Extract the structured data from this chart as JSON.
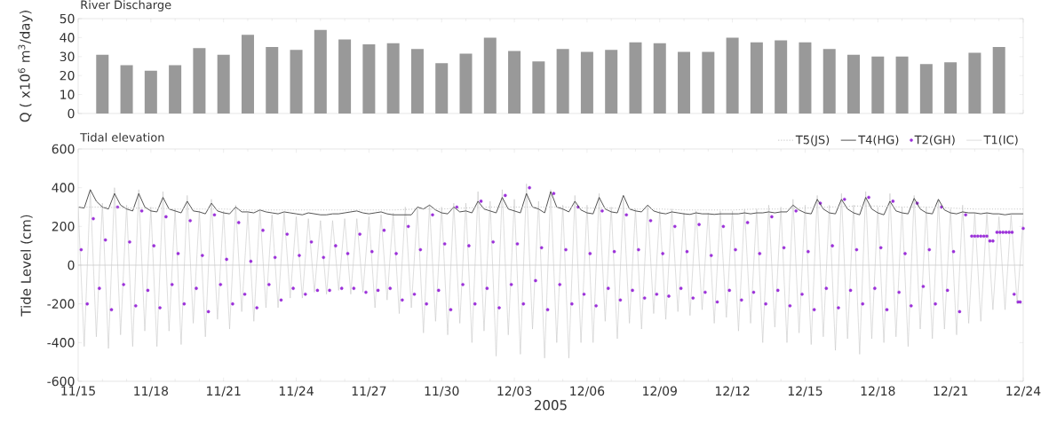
{
  "chart_data": [
    {
      "type": "bar",
      "title": "River Discharge",
      "ylabel": "Q ( x10$^{6}$ m$^{3}$/day)",
      "x": [
        "2005-11-16",
        "2005-11-17",
        "2005-11-18",
        "2005-11-19",
        "2005-11-20",
        "2005-11-21",
        "2005-11-22",
        "2005-11-23",
        "2005-11-24",
        "2005-11-25",
        "2005-11-26",
        "2005-11-27",
        "2005-11-28",
        "2005-11-29",
        "2005-11-30",
        "2005-12-01",
        "2005-12-02",
        "2005-12-03",
        "2005-12-04",
        "2005-12-05",
        "2005-12-06",
        "2005-12-07",
        "2005-12-08",
        "2005-12-09",
        "2005-12-10",
        "2005-12-11",
        "2005-12-12",
        "2005-12-13",
        "2005-12-14",
        "2005-12-15",
        "2005-12-16",
        "2005-12-17",
        "2005-12-18",
        "2005-12-19",
        "2005-12-20",
        "2005-12-21",
        "2005-12-22",
        "2005-12-23"
      ],
      "values": [
        31,
        25.5,
        22.5,
        25.5,
        34.5,
        31,
        41.5,
        35,
        33.5,
        44,
        39,
        36.5,
        37,
        34,
        26.5,
        31.5,
        40,
        33,
        27.5,
        34,
        32.5,
        33.5,
        37.5,
        37,
        32.5,
        32.5,
        40,
        37.5,
        38.5,
        37.5,
        34,
        31,
        30,
        30,
        26,
        27,
        32,
        35
      ],
      "color": "#999999",
      "xlim": [
        "2005-11-15",
        "2005-12-24"
      ],
      "xticks": [
        {
          "value": "2005-11-15",
          "label": null
        },
        {
          "value": "2005-11-18",
          "label": null
        },
        {
          "value": "2005-11-21",
          "label": null
        },
        {
          "value": "2005-11-24",
          "label": null
        },
        {
          "value": "2005-11-27",
          "label": null
        },
        {
          "value": "2005-11-30",
          "label": null
        },
        {
          "value": "2005-12-03",
          "label": null
        },
        {
          "value": "2005-12-06",
          "label": null
        },
        {
          "value": "2005-12-09",
          "label": null
        },
        {
          "value": "2005-12-12",
          "label": null
        },
        {
          "value": "2005-12-15",
          "label": null
        },
        {
          "value": "2005-12-18",
          "label": null
        },
        {
          "value": "2005-12-21",
          "label": null
        },
        {
          "value": "2005-12-24",
          "label": null
        }
      ],
      "ylim": [
        0,
        50
      ],
      "yticks": [
        0,
        10,
        20,
        30,
        40,
        50
      ],
      "tick_labels": "y"
    },
    {
      "type": "line",
      "title": "Tidal elevation",
      "xlabel": "2005",
      "ylabel": "Tide Level (cm)",
      "legend": "top right",
      "x": [
        "2005-11-15T00:00",
        "2005-11-15T06:00",
        "2005-11-15T12:00",
        "2005-11-15T18:00",
        "2005-11-16T00:00",
        "2005-11-16T06:00",
        "2005-11-16T12:00",
        "2005-11-16T18:00",
        "2005-11-17T00:00",
        "2005-11-17T06:00",
        "2005-11-17T12:00",
        "2005-11-17T18:00",
        "2005-11-18T00:00",
        "2005-11-18T06:00",
        "2005-11-18T12:00",
        "2005-11-18T18:00",
        "2005-11-19T00:00",
        "2005-11-19T06:00",
        "2005-11-19T12:00",
        "2005-11-19T18:00",
        "2005-11-20T00:00",
        "2005-11-20T06:00",
        "2005-11-20T12:00",
        "2005-11-20T18:00",
        "2005-11-21T00:00",
        "2005-11-21T06:00",
        "2005-11-21T12:00",
        "2005-11-21T18:00",
        "2005-11-22T00:00",
        "2005-11-22T06:00",
        "2005-11-22T12:00",
        "2005-11-22T18:00",
        "2005-11-23T00:00",
        "2005-11-23T06:00",
        "2005-11-23T12:00",
        "2005-11-23T18:00",
        "2005-11-24T00:00",
        "2005-11-24T06:00",
        "2005-11-24T12:00",
        "2005-11-24T18:00",
        "2005-11-25T00:00",
        "2005-11-25T06:00",
        "2005-11-25T12:00",
        "2005-11-25T18:00",
        "2005-11-26T00:00",
        "2005-11-26T06:00",
        "2005-11-26T12:00",
        "2005-11-26T18:00",
        "2005-11-27T00:00",
        "2005-11-27T06:00",
        "2005-11-27T12:00",
        "2005-11-27T18:00",
        "2005-11-28T00:00",
        "2005-11-28T06:00",
        "2005-11-28T12:00",
        "2005-11-28T18:00",
        "2005-11-29T00:00",
        "2005-11-29T06:00",
        "2005-11-29T12:00",
        "2005-11-29T18:00",
        "2005-11-30T00:00",
        "2005-11-30T06:00",
        "2005-11-30T12:00",
        "2005-11-30T18:00",
        "2005-12-01T00:00",
        "2005-12-01T06:00",
        "2005-12-01T12:00",
        "2005-12-01T18:00",
        "2005-12-02T00:00",
        "2005-12-02T06:00",
        "2005-12-02T12:00",
        "2005-12-02T18:00",
        "2005-12-03T00:00",
        "2005-12-03T06:00",
        "2005-12-03T12:00",
        "2005-12-03T18:00",
        "2005-12-04T00:00",
        "2005-12-04T06:00",
        "2005-12-04T12:00",
        "2005-12-04T18:00",
        "2005-12-05T00:00",
        "2005-12-05T06:00",
        "2005-12-05T12:00",
        "2005-12-05T18:00",
        "2005-12-06T00:00",
        "2005-12-06T06:00",
        "2005-12-06T12:00",
        "2005-12-06T18:00",
        "2005-12-07T00:00",
        "2005-12-07T06:00",
        "2005-12-07T12:00",
        "2005-12-07T18:00",
        "2005-12-08T00:00",
        "2005-12-08T06:00",
        "2005-12-08T12:00",
        "2005-12-08T18:00",
        "2005-12-09T00:00",
        "2005-12-09T06:00",
        "2005-12-09T12:00",
        "2005-12-09T18:00",
        "2005-12-10T00:00",
        "2005-12-10T06:00",
        "2005-12-10T12:00",
        "2005-12-10T18:00",
        "2005-12-11T00:00",
        "2005-12-11T06:00",
        "2005-12-11T12:00",
        "2005-12-11T18:00",
        "2005-12-12T00:00",
        "2005-12-12T06:00",
        "2005-12-12T12:00",
        "2005-12-12T18:00",
        "2005-12-13T00:00",
        "2005-12-13T06:00",
        "2005-12-13T12:00",
        "2005-12-13T18:00",
        "2005-12-14T00:00",
        "2005-12-14T06:00",
        "2005-12-14T12:00",
        "2005-12-14T18:00",
        "2005-12-15T00:00",
        "2005-12-15T06:00",
        "2005-12-15T12:00",
        "2005-12-15T18:00",
        "2005-12-16T00:00",
        "2005-12-16T06:00",
        "2005-12-16T12:00",
        "2005-12-16T18:00",
        "2005-12-17T00:00",
        "2005-12-17T06:00",
        "2005-12-17T12:00",
        "2005-12-17T18:00",
        "2005-12-18T00:00",
        "2005-12-18T06:00",
        "2005-12-18T12:00",
        "2005-12-18T18:00",
        "2005-12-19T00:00",
        "2005-12-19T06:00",
        "2005-12-19T12:00",
        "2005-12-19T18:00",
        "2005-12-20T00:00",
        "2005-12-20T06:00",
        "2005-12-20T12:00",
        "2005-12-20T18:00",
        "2005-12-21T00:00",
        "2005-12-21T06:00",
        "2005-12-21T12:00",
        "2005-12-21T18:00",
        "2005-12-22T00:00",
        "2005-12-22T06:00",
        "2005-12-22T12:00",
        "2005-12-22T18:00",
        "2005-12-23T00:00",
        "2005-12-23T06:00",
        "2005-12-23T12:00",
        "2005-12-23T18:00",
        "2005-12-24T00:00"
      ],
      "series": [
        {
          "name": "T5(JS)",
          "color": "#c8c8c8",
          "line_style": "dotted",
          "x": [
            "2005-11-15",
            "2005-11-16",
            "2005-11-17",
            "2005-11-18",
            "2005-11-19",
            "2005-11-20",
            "2005-11-21",
            "2005-11-22",
            "2005-11-23",
            "2005-11-24",
            "2005-11-25",
            "2005-11-26",
            "2005-11-27",
            "2005-11-28",
            "2005-11-29",
            "2005-11-30",
            "2005-12-01",
            "2005-12-02",
            "2005-12-03",
            "2005-12-04",
            "2005-12-05",
            "2005-12-06",
            "2005-12-07",
            "2005-12-08",
            "2005-12-09",
            "2005-12-10",
            "2005-12-11",
            "2005-12-12",
            "2005-12-13",
            "2005-12-14",
            "2005-12-15",
            "2005-12-16",
            "2005-12-17",
            "2005-12-18",
            "2005-12-19",
            "2005-12-20",
            "2005-12-21",
            "2005-12-22",
            "2005-12-23",
            "2005-12-24"
          ],
          "values": [
            300,
            300,
            295,
            295,
            290,
            290,
            290,
            285,
            285,
            285,
            285,
            285,
            285,
            285,
            290,
            290,
            295,
            300,
            300,
            300,
            300,
            295,
            295,
            290,
            290,
            285,
            285,
            285,
            290,
            290,
            295,
            300,
            305,
            305,
            300,
            300,
            295,
            290,
            290,
            290
          ]
        },
        {
          "name": "T4(HG)",
          "color": "#404040",
          "values": [
            300,
            295,
            390,
            330,
            300,
            290,
            370,
            310,
            290,
            280,
            370,
            300,
            280,
            275,
            350,
            290,
            280,
            270,
            330,
            280,
            275,
            265,
            320,
            280,
            270,
            265,
            300,
            275,
            275,
            270,
            285,
            275,
            270,
            265,
            275,
            270,
            265,
            260,
            270,
            265,
            260,
            260,
            265,
            265,
            270,
            275,
            280,
            270,
            265,
            270,
            275,
            265,
            260,
            260,
            260,
            260,
            300,
            290,
            310,
            285,
            270,
            265,
            300,
            275,
            280,
            270,
            330,
            290,
            280,
            270,
            350,
            290,
            280,
            270,
            370,
            300,
            290,
            270,
            380,
            300,
            290,
            275,
            330,
            285,
            270,
            265,
            350,
            290,
            275,
            270,
            360,
            290,
            280,
            275,
            310,
            280,
            270,
            265,
            275,
            270,
            265,
            262,
            270,
            265,
            265,
            262,
            265,
            265,
            265,
            265,
            270,
            265,
            270,
            270,
            275,
            270,
            275,
            275,
            310,
            285,
            270,
            265,
            340,
            290,
            270,
            265,
            340,
            290,
            270,
            260,
            350,
            290,
            270,
            260,
            330,
            280,
            270,
            265,
            345,
            290,
            270,
            265,
            340,
            285,
            270,
            265,
            275,
            270,
            270,
            265,
            270,
            265,
            265,
            260,
            265,
            265,
            265
          ]
        },
        {
          "name": "T2(GH)",
          "type": "scatter",
          "color": "#9b30d9",
          "marker": "circle",
          "x": [
            "2005-11-15T03:00",
            "2005-11-15T09:00",
            "2005-11-15T15:00",
            "2005-11-15T21:00",
            "2005-11-16T03:00",
            "2005-11-16T09:00",
            "2005-11-16T15:00",
            "2005-11-16T21:00",
            "2005-11-17T03:00",
            "2005-11-17T09:00",
            "2005-11-17T15:00",
            "2005-11-17T21:00",
            "2005-11-18T03:00",
            "2005-11-18T09:00",
            "2005-11-18T15:00",
            "2005-11-18T21:00",
            "2005-11-19T03:00",
            "2005-11-19T09:00",
            "2005-11-19T15:00",
            "2005-11-19T21:00",
            "2005-11-20T03:00",
            "2005-11-20T09:00",
            "2005-11-20T15:00",
            "2005-11-20T21:00",
            "2005-11-21T03:00",
            "2005-11-21T09:00",
            "2005-11-21T15:00",
            "2005-11-21T21:00",
            "2005-11-22T03:00",
            "2005-11-22T09:00",
            "2005-11-22T15:00",
            "2005-11-22T21:00",
            "2005-11-23T03:00",
            "2005-11-23T09:00",
            "2005-11-23T15:00",
            "2005-11-23T21:00",
            "2005-11-24T03:00",
            "2005-11-24T09:00",
            "2005-11-24T15:00",
            "2005-11-24T21:00",
            "2005-11-25T03:00",
            "2005-11-25T09:00",
            "2005-11-25T15:00",
            "2005-11-25T21:00",
            "2005-11-26T03:00",
            "2005-11-26T09:00",
            "2005-11-26T15:00",
            "2005-11-26T21:00",
            "2005-11-27T03:00",
            "2005-11-27T09:00",
            "2005-11-27T15:00",
            "2005-11-27T21:00",
            "2005-11-28T03:00",
            "2005-11-28T09:00",
            "2005-11-28T15:00",
            "2005-11-28T21:00",
            "2005-11-29T03:00",
            "2005-11-29T09:00",
            "2005-11-29T15:00",
            "2005-11-29T21:00",
            "2005-11-30T03:00",
            "2005-11-30T09:00",
            "2005-11-30T15:00",
            "2005-11-30T21:00",
            "2005-12-01T03:00",
            "2005-12-01T09:00",
            "2005-12-01T15:00",
            "2005-12-01T21:00",
            "2005-12-02T03:00",
            "2005-12-02T09:00",
            "2005-12-02T15:00",
            "2005-12-02T21:00",
            "2005-12-03T03:00",
            "2005-12-03T09:00",
            "2005-12-03T15:00",
            "2005-12-03T21:00",
            "2005-12-04T03:00",
            "2005-12-04T09:00",
            "2005-12-04T15:00",
            "2005-12-04T21:00",
            "2005-12-05T03:00",
            "2005-12-05T09:00",
            "2005-12-05T15:00",
            "2005-12-05T21:00",
            "2005-12-06T03:00",
            "2005-12-06T09:00",
            "2005-12-06T15:00",
            "2005-12-06T21:00",
            "2005-12-07T03:00",
            "2005-12-07T09:00",
            "2005-12-07T15:00",
            "2005-12-07T21:00",
            "2005-12-08T03:00",
            "2005-12-08T09:00",
            "2005-12-08T15:00",
            "2005-12-08T21:00",
            "2005-12-09T03:00",
            "2005-12-09T09:00",
            "2005-12-09T15:00",
            "2005-12-09T21:00",
            "2005-12-10T03:00",
            "2005-12-10T09:00",
            "2005-12-10T15:00",
            "2005-12-10T21:00",
            "2005-12-11T03:00",
            "2005-12-11T09:00",
            "2005-12-11T15:00",
            "2005-12-11T21:00",
            "2005-12-12T03:00",
            "2005-12-12T09:00",
            "2005-12-12T15:00",
            "2005-12-12T21:00",
            "2005-12-13T03:00",
            "2005-12-13T09:00",
            "2005-12-13T15:00",
            "2005-12-13T21:00",
            "2005-12-14T03:00",
            "2005-12-14T09:00",
            "2005-12-14T15:00",
            "2005-12-14T21:00",
            "2005-12-15T03:00",
            "2005-12-15T09:00",
            "2005-12-15T15:00",
            "2005-12-15T21:00",
            "2005-12-16T03:00",
            "2005-12-16T09:00",
            "2005-12-16T15:00",
            "2005-12-16T21:00",
            "2005-12-17T03:00",
            "2005-12-17T09:00",
            "2005-12-17T15:00",
            "2005-12-17T21:00",
            "2005-12-18T03:00",
            "2005-12-18T09:00",
            "2005-12-18T15:00",
            "2005-12-18T21:00",
            "2005-12-19T03:00",
            "2005-12-19T09:00",
            "2005-12-19T15:00",
            "2005-12-19T21:00",
            "2005-12-20T03:00",
            "2005-12-20T09:00",
            "2005-12-20T15:00",
            "2005-12-20T21:00",
            "2005-12-21T03:00",
            "2005-12-21T09:00",
            "2005-12-21T15:00",
            "2005-12-21T21:00",
            "2005-12-22T00:00",
            "2005-12-22T03:00",
            "2005-12-22T06:00",
            "2005-12-22T09:00",
            "2005-12-22T12:00",
            "2005-12-22T15:00",
            "2005-12-22T18:00",
            "2005-12-22T22:00",
            "2005-12-23T01:00",
            "2005-12-23T04:00",
            "2005-12-23T07:00",
            "2005-12-23T10:00",
            "2005-12-23T13:00",
            "2005-12-23T15:00",
            "2005-12-23T19:00",
            "2005-12-23T21:00",
            "2005-12-24T00:00"
          ],
          "values": [
            80,
            -200,
            240,
            -120,
            130,
            -230,
            300,
            -100,
            120,
            -210,
            280,
            -130,
            100,
            -220,
            250,
            -100,
            60,
            -200,
            230,
            -120,
            50,
            -240,
            260,
            -100,
            30,
            -200,
            220,
            -150,
            20,
            -220,
            180,
            -100,
            40,
            -180,
            160,
            -120,
            50,
            -150,
            120,
            -130,
            40,
            -130,
            100,
            -120,
            60,
            -120,
            160,
            -140,
            70,
            -130,
            180,
            -120,
            60,
            -180,
            200,
            -150,
            80,
            -200,
            260,
            -130,
            110,
            -230,
            300,
            -100,
            100,
            -200,
            330,
            -120,
            120,
            -220,
            360,
            -100,
            110,
            -200,
            400,
            -80,
            90,
            -230,
            370,
            -100,
            80,
            -200,
            300,
            -150,
            60,
            -210,
            280,
            -120,
            70,
            -180,
            260,
            -130,
            80,
            -170,
            230,
            -150,
            60,
            -160,
            200,
            -120,
            70,
            -170,
            210,
            -140,
            50,
            -190,
            200,
            -130,
            80,
            -180,
            220,
            -140,
            60,
            -200,
            250,
            -130,
            90,
            -210,
            280,
            -150,
            70,
            -230,
            320,
            -120,
            100,
            -220,
            340,
            -130,
            80,
            -200,
            350,
            -120,
            90,
            -230,
            330,
            -140,
            60,
            -210,
            320,
            -110,
            80,
            -200,
            300,
            -130,
            70,
            -240,
            260,
            150,
            150,
            150,
            150,
            150,
            150,
            125,
            125,
            170,
            170,
            170,
            170,
            170,
            170,
            -150,
            -190,
            -190,
            190
          ]
        },
        {
          "name": "T1(IC)",
          "color": "#c8c8c8",
          "values": [
            300,
            -420,
            390,
            -370,
            320,
            -430,
            400,
            -360,
            310,
            -420,
            390,
            -340,
            300,
            -420,
            380,
            -340,
            290,
            -410,
            360,
            -300,
            280,
            -370,
            340,
            -280,
            280,
            -330,
            310,
            -240,
            270,
            -290,
            290,
            -220,
            260,
            -220,
            270,
            -170,
            250,
            -170,
            240,
            -140,
            230,
            -150,
            230,
            -130,
            240,
            -150,
            240,
            -140,
            250,
            -220,
            260,
            -180,
            270,
            -250,
            300,
            -220,
            290,
            -350,
            310,
            -290,
            300,
            -360,
            320,
            -300,
            320,
            -400,
            380,
            -340,
            330,
            -470,
            390,
            -360,
            340,
            -460,
            420,
            -330,
            330,
            -480,
            390,
            -400,
            310,
            -480,
            360,
            -400,
            310,
            -400,
            370,
            -290,
            300,
            -380,
            340,
            -300,
            290,
            -330,
            310,
            -250,
            280,
            -280,
            290,
            -240,
            270,
            -260,
            280,
            -230,
            270,
            -300,
            280,
            -270,
            280,
            -340,
            290,
            -300,
            290,
            -400,
            310,
            -320,
            300,
            -400,
            340,
            -350,
            310,
            -410,
            360,
            -370,
            310,
            -440,
            370,
            -380,
            310,
            -460,
            380,
            -380,
            300,
            -400,
            370,
            -370,
            300,
            -420,
            360,
            -330,
            300,
            -380,
            340,
            -330,
            290,
            -360,
            310,
            -300,
            270,
            -290,
            270,
            -230,
            250,
            -230,
            260,
            -200,
            240
          ]
        }
      ],
      "ref_lines": [
        {
          "axis": "y",
          "value": 0,
          "color": "#bbbbbb"
        }
      ],
      "xlim": [
        "2005-11-15",
        "2005-12-24"
      ],
      "xticks": [
        {
          "value": "2005-11-15",
          "label": "11/15"
        },
        {
          "value": "2005-11-18",
          "label": "11/18"
        },
        {
          "value": "2005-11-21",
          "label": "11/21"
        },
        {
          "value": "2005-11-24",
          "label": "11/24"
        },
        {
          "value": "2005-11-27",
          "label": "11/27"
        },
        {
          "value": "2005-11-30",
          "label": "11/30"
        },
        {
          "value": "2005-12-03",
          "label": "12/03"
        },
        {
          "value": "2005-12-06",
          "label": "12/06"
        },
        {
          "value": "2005-12-09",
          "label": "12/09"
        },
        {
          "value": "2005-12-12",
          "label": "12/12"
        },
        {
          "value": "2005-12-15",
          "label": "12/15"
        },
        {
          "value": "2005-12-18",
          "label": "12/18"
        },
        {
          "value": "2005-12-21",
          "label": "12/21"
        },
        {
          "value": "2005-12-24",
          "label": "12/24"
        }
      ],
      "ylim": [
        -600,
        600
      ],
      "yticks": [
        -600,
        -400,
        -200,
        0,
        200,
        400,
        600
      ]
    }
  ]
}
